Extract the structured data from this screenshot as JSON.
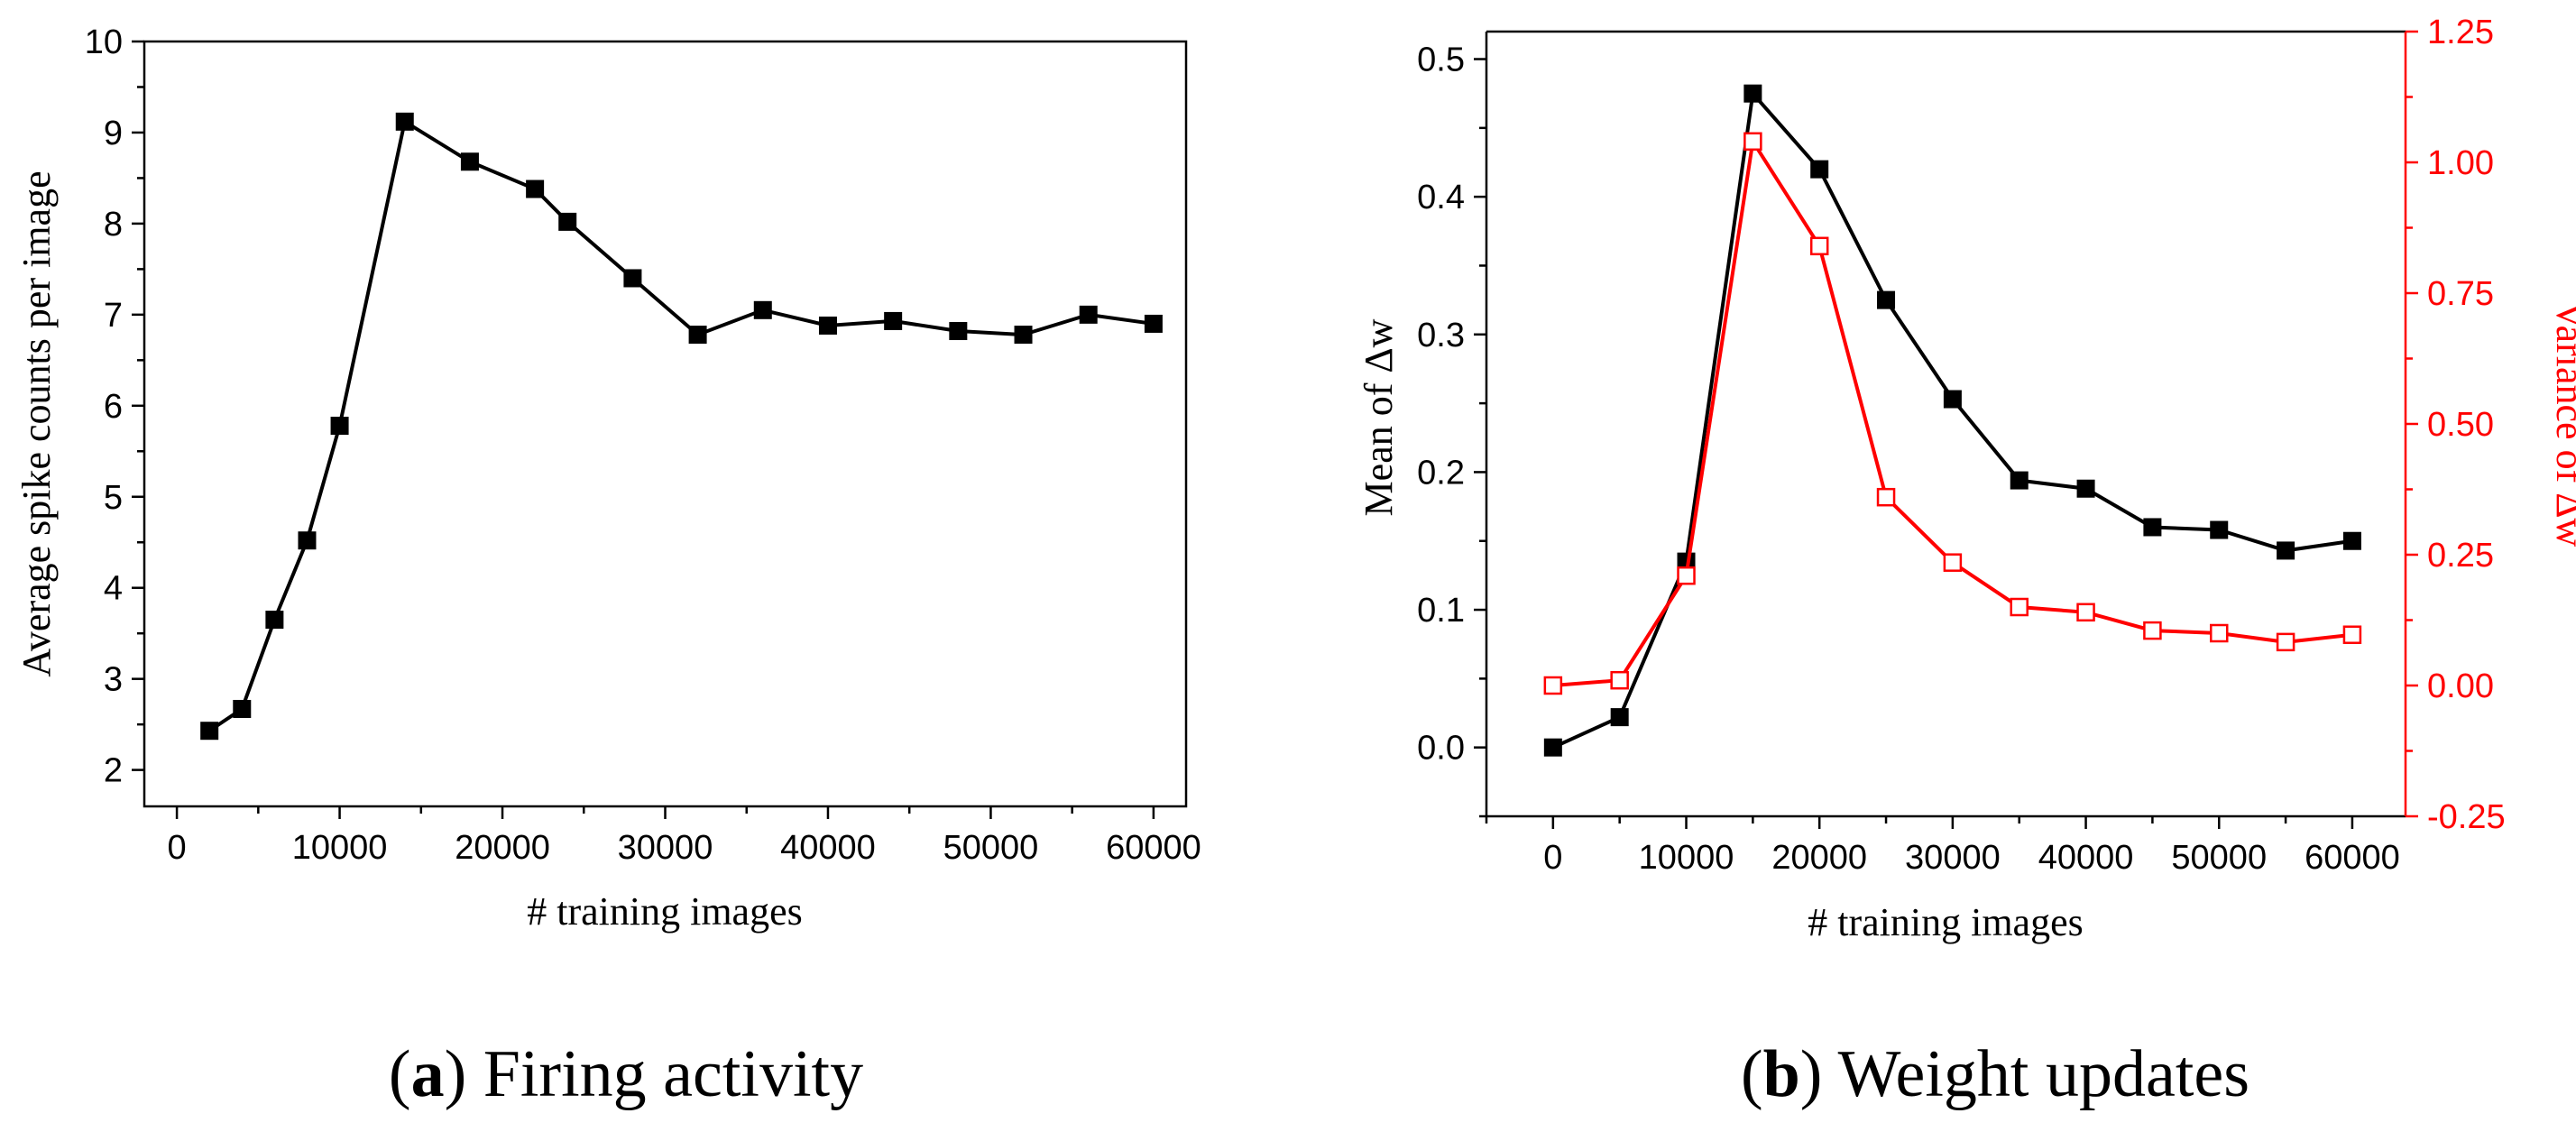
{
  "chart_data": [
    {
      "id": "a",
      "type": "line",
      "caption": {
        "letter": "a",
        "text": "Firing activity"
      },
      "xlabel": "# training images",
      "ylabel": "Average spike counts per image",
      "xlim": [
        -2000,
        62000
      ],
      "ylim": [
        1.6,
        10
      ],
      "xticks": [
        0,
        10000,
        20000,
        30000,
        40000,
        50000,
        60000
      ],
      "yticks": [
        2,
        3,
        4,
        5,
        6,
        7,
        8,
        9,
        10
      ],
      "series": [
        {
          "name": "Average spike counts",
          "color": "#000000",
          "marker": "filled-square",
          "x": [
            2000,
            4000,
            6000,
            8000,
            10000,
            14000,
            18000,
            22000,
            24000,
            28000,
            32000,
            36000,
            40000,
            44000,
            48000,
            52000,
            56000,
            60000
          ],
          "y": [
            2.43,
            2.67,
            3.65,
            4.52,
            5.78,
            9.12,
            8.68,
            8.38,
            8.02,
            7.4,
            6.78,
            7.05,
            6.88,
            6.93,
            6.82,
            6.78,
            7.0,
            6.9
          ]
        }
      ]
    },
    {
      "id": "b",
      "type": "line",
      "caption": {
        "letter": "b",
        "text": "Weight updates"
      },
      "xlabel": "# training images",
      "ylabel": "Mean of Δw",
      "y2label": "Variance of Δw",
      "xlim": [
        -5000,
        64000
      ],
      "ylim": [
        -0.05,
        0.52
      ],
      "y2lim": [
        -0.25,
        1.25
      ],
      "xticks": [
        0,
        10000,
        20000,
        30000,
        40000,
        50000,
        60000
      ],
      "yticks": [
        0.0,
        0.1,
        0.2,
        0.3,
        0.4,
        0.5
      ],
      "y2ticks": [
        -0.25,
        0.0,
        0.25,
        0.5,
        0.75,
        1.0,
        1.25
      ],
      "series": [
        {
          "name": "Mean of Δw",
          "axis": "left",
          "color": "#000000",
          "marker": "filled-square",
          "x": [
            0,
            5000,
            10000,
            15000,
            20000,
            25000,
            30000,
            35000,
            40000,
            45000,
            50000,
            55000,
            60000
          ],
          "y": [
            0.0,
            0.022,
            0.135,
            0.475,
            0.42,
            0.325,
            0.253,
            0.194,
            0.188,
            0.16,
            0.158,
            0.143,
            0.15
          ]
        },
        {
          "name": "Variance of Δw",
          "axis": "right",
          "color": "#ff0000",
          "marker": "open-square",
          "x": [
            0,
            5000,
            10000,
            15000,
            20000,
            25000,
            30000,
            35000,
            40000,
            45000,
            50000,
            55000,
            60000
          ],
          "y": [
            0.0,
            0.01,
            0.21,
            1.04,
            0.84,
            0.36,
            0.235,
            0.15,
            0.14,
            0.105,
            0.1,
            0.083,
            0.097
          ]
        }
      ]
    }
  ]
}
